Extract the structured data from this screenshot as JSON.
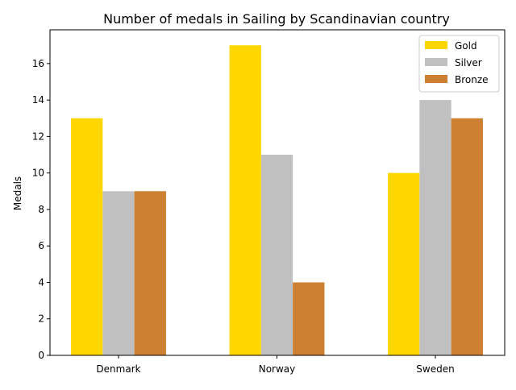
{
  "chart_data": {
    "type": "bar",
    "title": "Number of medals in Sailing by Scandinavian country",
    "xlabel": "",
    "ylabel": "Medals",
    "categories": [
      "Denmark",
      "Norway",
      "Sweden"
    ],
    "series": [
      {
        "name": "Gold",
        "values": [
          13,
          17,
          10
        ],
        "color": "#FFD700"
      },
      {
        "name": "Silver",
        "values": [
          9,
          11,
          14
        ],
        "color": "#C0C0C0"
      },
      {
        "name": "Bronze",
        "values": [
          9,
          4,
          13
        ],
        "color": "#CD7F32"
      }
    ],
    "ylim": [
      0,
      17.85
    ],
    "yticks": [
      0,
      2,
      4,
      6,
      8,
      10,
      12,
      14,
      16
    ],
    "grid": false,
    "legend_position": "top-right"
  }
}
